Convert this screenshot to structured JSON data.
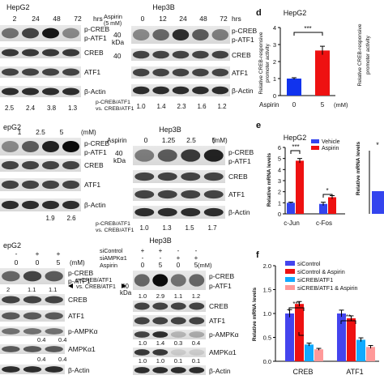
{
  "panel_a": {
    "cell_line": "HepG2",
    "time_values": [
      "2",
      "24",
      "48",
      "72"
    ],
    "time_unit": "hrs",
    "bands": [
      "p-CREB",
      "p-ATF1",
      "CREB",
      "ATF1",
      "β-Actin"
    ],
    "ratio_values": [
      "2.5",
      "2.4",
      "3.8",
      "1.3"
    ]
  },
  "panel_b": {
    "cell_line": "Hep3B",
    "treatment_label": "Aspirin",
    "treatment_dose": "(5 mM)",
    "time_values": [
      "0",
      "12",
      "24",
      "48",
      "72"
    ],
    "time_unit": "hrs",
    "mw": "40",
    "mw_unit": "kDa",
    "bands": [
      "p-CREB",
      "p-ATF1",
      "CREB",
      "ATF1",
      "β-Actin"
    ],
    "ratio_label_line1": "p-CREB/ATF1",
    "ratio_label_line2": "vs. CREB/ATF1",
    "ratio_values": [
      "1.0",
      "1.4",
      "2.3",
      "1.6",
      "1.2"
    ]
  },
  "panel_c_left": {
    "cell_line": "epG2",
    "dose_values": [
      "1",
      "2.5",
      "5"
    ],
    "dose_unit": "(mM)",
    "bands": [
      "p-CREB",
      "p-ATF1",
      "CREB",
      "ATF1",
      "β-Actin"
    ],
    "ratio_values": [
      "1.9",
      "2.6"
    ]
  },
  "panel_c_right": {
    "cell_line": "Hep3B",
    "treatment_label": "Aspirin",
    "dose_values": [
      "0",
      "1.25",
      "2.5",
      "5"
    ],
    "dose_unit": "(mM)",
    "mw": "40",
    "mw_unit": "kDa",
    "bands": [
      "p-CREB",
      "p-ATF1",
      "CREB",
      "ATF1",
      "β-Actin"
    ],
    "ratio_label_line1": "p-CREB/ATF1",
    "ratio_label_line2": "vs. CREB/ATF1",
    "ratio_values": [
      "1.0",
      "1.3",
      "1.5",
      "1.7"
    ]
  },
  "panel_g_left": {
    "cell_line": "epG2",
    "row1": [
      "-",
      "+",
      "+"
    ],
    "row2": [
      "0",
      "0",
      "5"
    ],
    "dose_unit": "(mM)",
    "bands": [
      "p-CREB",
      "p-ATF1",
      "CREB",
      "ATF1",
      "p-AMPKα",
      "AMPKα1",
      "β-Actin"
    ],
    "ratio_values": [
      "2",
      "1.1",
      "1.1"
    ],
    "ampk_values": [
      "0.4",
      "0.4"
    ],
    "ampk1_values": [
      "0.4",
      "0.4"
    ]
  },
  "panel_g_right": {
    "cell_line": "Hep3B",
    "row_labels": [
      "siControl",
      "siAMPKα1",
      "Aspirin"
    ],
    "row1": [
      "+",
      "+",
      "-",
      "-"
    ],
    "row2": [
      "-",
      "-",
      "+",
      "+"
    ],
    "row3": [
      "0",
      "5",
      "0",
      "5"
    ],
    "center_label_line1": "p-CREB/ATF1",
    "center_label_line2": "vs. CREB/ATF1",
    "mw": "40",
    "mw_unit": "kDa",
    "bands": [
      "p-CREB",
      "p-ATF1",
      "CREB",
      "ATF1",
      "p-AMPKα",
      "AMPKα1",
      "β-Actin"
    ],
    "ratio_values": [
      "1.0",
      "2.9",
      "1.1",
      "1.2"
    ],
    "ampk_values": [
      "1.0",
      "1.4",
      "0.3",
      "0.4"
    ],
    "ampk1_values": [
      "1.0",
      "1.0",
      "0.1",
      "0.1"
    ]
  },
  "panel_d": {
    "letter": "d",
    "title": "HepG2",
    "ylabel_line1": "Relative CREB-responsive",
    "ylabel_line2": "promoter activity",
    "yticks": [
      "0",
      "1",
      "2",
      "3",
      "4"
    ],
    "xlabel": "Aspirin",
    "categories": [
      "0",
      "5"
    ],
    "unit": "(mM)",
    "significance": "***",
    "bar_color": "#1133ee",
    "bar2_color": "#ee1111",
    "right_ylabel_line1": "Relative CREB-responsive",
    "right_ylabel_line2": "promoter activity"
  },
  "panel_e": {
    "letter": "e",
    "title": "HepG2",
    "ylabel": "Relative mRNA levels",
    "yticks": [
      "0",
      "1",
      "2",
      "3",
      "4",
      "5",
      "6"
    ],
    "categories": [
      "c-Jun",
      "c-Fos"
    ],
    "legend": [
      "Vehicle",
      "Aspirin"
    ],
    "significance": [
      "***",
      "*"
    ],
    "right_ylabel": "Relative mRNA levels",
    "right_sig": "*",
    "color_vehicle": "#3344ee",
    "color_aspirin": "#ee1111"
  },
  "panel_f": {
    "letter": "f",
    "ylabel": "Relative mRNA levels",
    "yticks": [
      "0.0",
      "0.5",
      "1.0",
      "1.5",
      "2.0"
    ],
    "categories": [
      "CREB",
      "ATF1"
    ],
    "legend": [
      "siControl",
      "siControl & Aspirin",
      "siCREB/ATF1",
      "siCREB/ATF1 & Aspirin"
    ],
    "significance": [
      "***",
      "**"
    ],
    "colors": [
      "#4444ee",
      "#ee1111",
      "#11aaff",
      "#ff9999"
    ]
  },
  "chart_data": [
    {
      "type": "bar",
      "title": "HepG2",
      "xlabel": "Aspirin",
      "ylabel": "Relative CREB-responsive promoter activity",
      "categories": [
        "0",
        "5"
      ],
      "values": [
        1.0,
        2.65
      ],
      "errors": [
        0.05,
        0.25
      ],
      "ylim": [
        0,
        4
      ]
    },
    {
      "type": "bar",
      "title": "HepG2",
      "ylabel": "Relative mRNA levels",
      "categories": [
        "c-Jun",
        "c-Fos"
      ],
      "series": [
        {
          "name": "Vehicle",
          "values": [
            1.0,
            0.9
          ],
          "errors": [
            0.05,
            0.15
          ]
        },
        {
          "name": "Aspirin",
          "values": [
            4.8,
            1.5
          ],
          "errors": [
            0.2,
            0.15
          ]
        }
      ],
      "ylim": [
        0,
        6
      ]
    },
    {
      "type": "bar",
      "ylabel": "Relative mRNA levels",
      "categories": [
        "CREB",
        "ATF1"
      ],
      "series": [
        {
          "name": "siControl",
          "values": [
            1.0,
            1.0
          ],
          "errors": [
            0.08,
            0.07
          ]
        },
        {
          "name": "siControl & Aspirin",
          "values": [
            1.2,
            0.9
          ],
          "errors": [
            0.05,
            0.05
          ]
        },
        {
          "name": "siCREB/ATF1",
          "values": [
            0.35,
            0.45
          ],
          "errors": [
            0.03,
            0.04
          ]
        },
        {
          "name": "siCREB/ATF1 & Aspirin",
          "values": [
            0.25,
            0.3
          ],
          "errors": [
            0.02,
            0.03
          ]
        }
      ],
      "ylim": [
        0,
        2
      ]
    }
  ]
}
